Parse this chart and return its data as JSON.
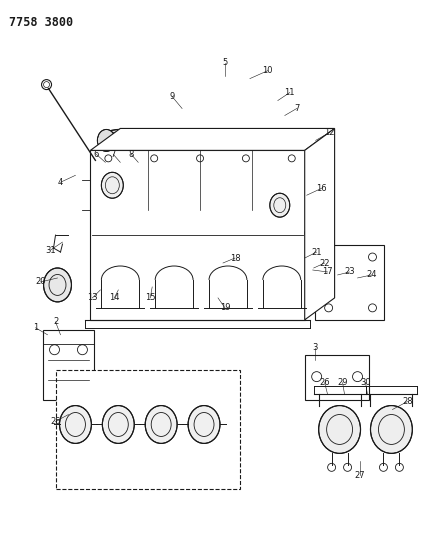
{
  "title": "7758 3800",
  "bg_color": "#ffffff",
  "fig_width": 4.28,
  "fig_height": 5.33,
  "dpi": 100,
  "line_color": "#1a1a1a",
  "label_fs": 6.0,
  "title_fs": 8.5
}
